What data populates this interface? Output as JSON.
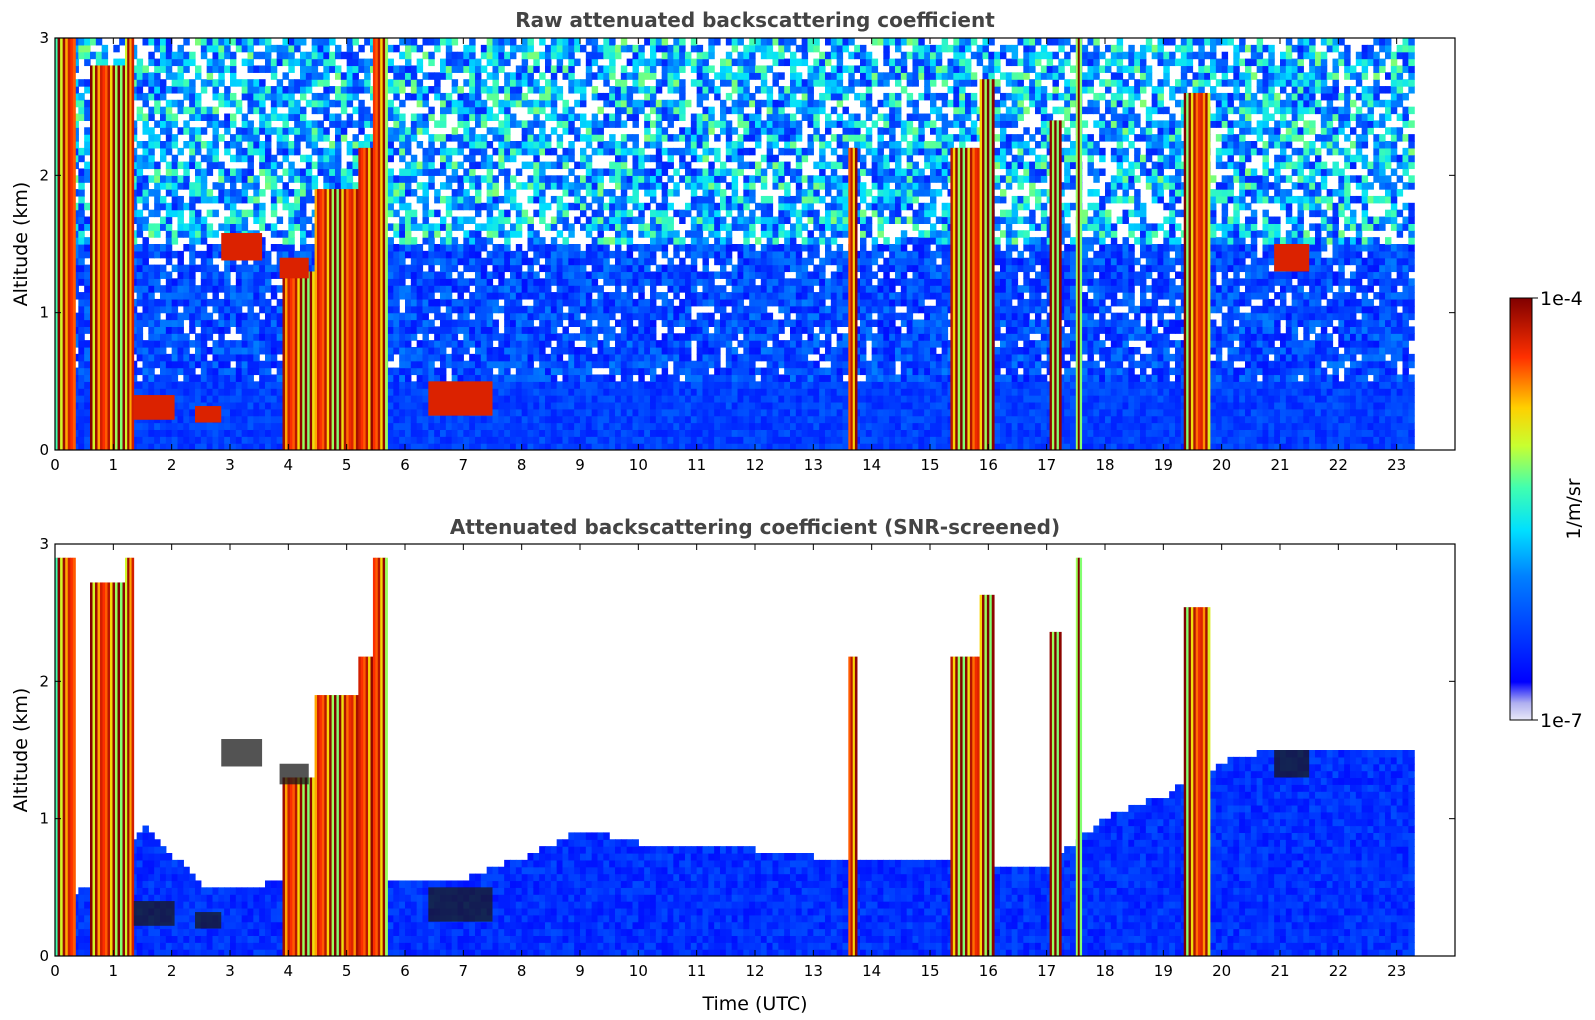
{
  "chart_data": [
    {
      "type": "heatmap",
      "title": "Raw attenuated backscattering coefficient",
      "xlabel": "",
      "ylabel": "Altitude (km)",
      "xlim": [
        0,
        24
      ],
      "ylim": [
        0,
        3
      ],
      "x_ticks": [
        "0",
        "1",
        "2",
        "3",
        "4",
        "5",
        "6",
        "7",
        "8",
        "9",
        "10",
        "11",
        "12",
        "13",
        "14",
        "15",
        "16",
        "17",
        "18",
        "19",
        "20",
        "21",
        "22",
        "23"
      ],
      "y_ticks": [
        "0",
        "1",
        "2",
        "3"
      ],
      "data_time_range": [
        0,
        23.3
      ],
      "screened": false,
      "cloud_columns": [
        {
          "start": 0.0,
          "end": 0.35,
          "top": 3.0
        },
        {
          "start": 0.6,
          "end": 1.2,
          "top": 2.8
        },
        {
          "start": 1.2,
          "end": 1.35,
          "top": 3.0
        },
        {
          "start": 3.9,
          "end": 4.45,
          "top": 1.3
        },
        {
          "start": 4.45,
          "end": 5.2,
          "top": 1.9
        },
        {
          "start": 5.2,
          "end": 5.45,
          "top": 2.2
        },
        {
          "start": 5.45,
          "end": 5.7,
          "top": 3.0
        },
        {
          "start": 13.6,
          "end": 13.75,
          "top": 2.2
        },
        {
          "start": 15.35,
          "end": 15.85,
          "top": 2.2
        },
        {
          "start": 15.85,
          "end": 16.1,
          "top": 2.7
        },
        {
          "start": 17.05,
          "end": 17.25,
          "top": 2.4
        },
        {
          "start": 17.5,
          "end": 17.6,
          "top": 3.0
        },
        {
          "start": 19.35,
          "end": 19.8,
          "top": 2.6
        }
      ],
      "layers": [
        {
          "start": 1.35,
          "end": 2.05,
          "base": 0.22,
          "top": 0.4
        },
        {
          "start": 2.4,
          "end": 2.85,
          "base": 0.2,
          "top": 0.32
        },
        {
          "start": 2.85,
          "end": 3.55,
          "base": 1.38,
          "top": 1.58
        },
        {
          "start": 3.85,
          "end": 4.35,
          "base": 1.25,
          "top": 1.4
        },
        {
          "start": 6.4,
          "end": 7.5,
          "base": 0.25,
          "top": 0.5
        },
        {
          "start": 20.9,
          "end": 21.5,
          "base": 1.3,
          "top": 1.5
        }
      ]
    },
    {
      "type": "heatmap",
      "title": "Attenuated backscattering coefficient (SNR-screened)",
      "xlabel": "Time (UTC)",
      "ylabel": "Altitude (km)",
      "xlim": [
        0,
        24
      ],
      "ylim": [
        0,
        3
      ],
      "x_ticks": [
        "0",
        "1",
        "2",
        "3",
        "4",
        "5",
        "6",
        "7",
        "8",
        "9",
        "10",
        "11",
        "12",
        "13",
        "14",
        "15",
        "16",
        "17",
        "18",
        "19",
        "20",
        "21",
        "22",
        "23"
      ],
      "y_ticks": [
        "0",
        "1",
        "2",
        "3"
      ],
      "data_time_range": [
        0,
        23.3
      ],
      "screened": true,
      "boundary_layer_top": [
        [
          0,
          0.3
        ],
        [
          1.5,
          0.9
        ],
        [
          2.0,
          0.7
        ],
        [
          2.5,
          0.5
        ],
        [
          3.5,
          0.5
        ],
        [
          5.8,
          0.55
        ],
        [
          7.0,
          0.55
        ],
        [
          8.0,
          0.7
        ],
        [
          9.0,
          0.9
        ],
        [
          10.0,
          0.8
        ],
        [
          11.0,
          0.8
        ],
        [
          12.0,
          0.75
        ],
        [
          13.0,
          0.7
        ],
        [
          14.0,
          0.7
        ],
        [
          15.0,
          0.7
        ],
        [
          16.0,
          0.65
        ],
        [
          17.0,
          0.65
        ],
        [
          18.0,
          1.0
        ],
        [
          19.0,
          1.15
        ],
        [
          20.0,
          1.4
        ],
        [
          21.0,
          1.5
        ],
        [
          22.0,
          1.5
        ],
        [
          23.3,
          1.5
        ]
      ]
    }
  ],
  "colorbar": {
    "label": "1/m/sr",
    "max_label": "1e-4",
    "min_label": "1e-7",
    "colormap": "jet"
  }
}
